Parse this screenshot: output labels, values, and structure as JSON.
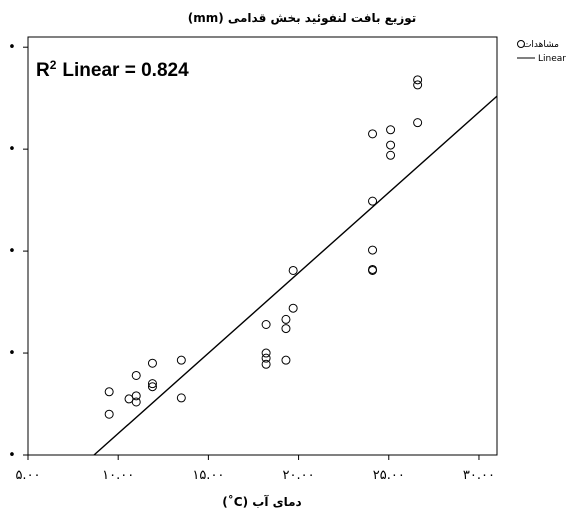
{
  "chart_data": {
    "type": "scatter",
    "title": "توزیع بافت لنفوئید بخش قدامی (mm)",
    "xlabel": "دمای آب (C˚)",
    "ylabel": "",
    "xlim": [
      5,
      31
    ],
    "ylim": [
      0,
      4.1
    ],
    "x_ticks": [
      5,
      10,
      15,
      20,
      25,
      30
    ],
    "x_tick_labels": [
      "۵.۰۰",
      "۱۰.۰۰",
      "۱۵.۰۰",
      "۲۰.۰۰",
      "۲۵.۰۰",
      "۳۰.۰۰"
    ],
    "y_ticks": [
      0,
      1,
      2,
      3,
      4
    ],
    "y_tick_labels": [
      "•",
      "•",
      "•",
      "•",
      "•"
    ],
    "grid": false,
    "legend_position": "top-right",
    "annotation": "R² Linear = 0.824",
    "annotation_main": "R",
    "annotation_sup": "2",
    "annotation_rest": "Linear = 0.824",
    "series": [
      {
        "name": "مشاهدات",
        "marker": "open-circle",
        "points": [
          {
            "x": 9.5,
            "y": 0.62
          },
          {
            "x": 9.5,
            "y": 0.4
          },
          {
            "x": 10.6,
            "y": 0.55
          },
          {
            "x": 11.0,
            "y": 0.58
          },
          {
            "x": 11.0,
            "y": 0.52
          },
          {
            "x": 11.0,
            "y": 0.78
          },
          {
            "x": 11.9,
            "y": 0.67
          },
          {
            "x": 11.9,
            "y": 0.7
          },
          {
            "x": 11.9,
            "y": 0.9
          },
          {
            "x": 13.5,
            "y": 0.93
          },
          {
            "x": 13.5,
            "y": 0.56
          },
          {
            "x": 18.2,
            "y": 1.28
          },
          {
            "x": 18.2,
            "y": 1.0
          },
          {
            "x": 18.2,
            "y": 0.95
          },
          {
            "x": 18.2,
            "y": 0.89
          },
          {
            "x": 19.3,
            "y": 1.33
          },
          {
            "x": 19.3,
            "y": 1.24
          },
          {
            "x": 19.3,
            "y": 0.93
          },
          {
            "x": 19.7,
            "y": 1.81
          },
          {
            "x": 19.7,
            "y": 1.44
          },
          {
            "x": 24.1,
            "y": 3.15
          },
          {
            "x": 24.1,
            "y": 2.49
          },
          {
            "x": 24.1,
            "y": 2.01
          },
          {
            "x": 24.1,
            "y": 1.82
          },
          {
            "x": 24.1,
            "y": 1.81
          },
          {
            "x": 25.1,
            "y": 3.19
          },
          {
            "x": 25.1,
            "y": 3.04
          },
          {
            "x": 25.1,
            "y": 2.94
          },
          {
            "x": 26.6,
            "y": 3.68
          },
          {
            "x": 26.6,
            "y": 3.63
          },
          {
            "x": 26.6,
            "y": 3.26
          }
        ]
      },
      {
        "name": "Linear",
        "type": "line",
        "points": [
          {
            "x": 8.66,
            "y": 0.0
          },
          {
            "x": 31.0,
            "y": 3.52
          }
        ]
      }
    ]
  },
  "colors": {
    "axis": "#000000",
    "marker_stroke": "#000000",
    "fit_line": "#000000",
    "background": "#ffffff"
  }
}
